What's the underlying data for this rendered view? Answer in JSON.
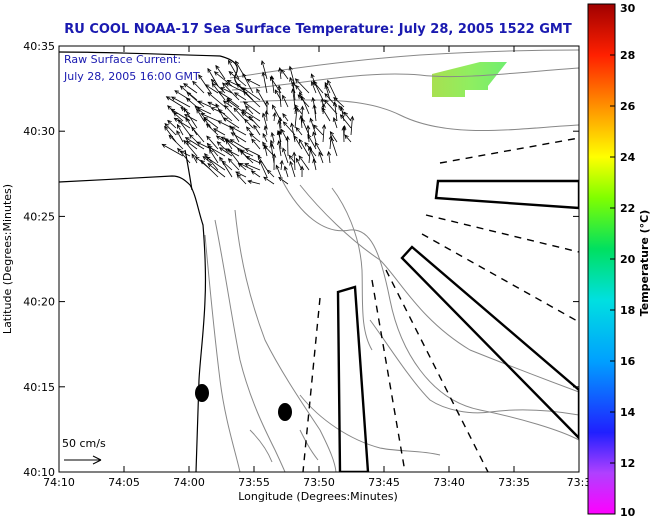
{
  "chart_data": {
    "type": "map",
    "title": "RU COOL  NOAA-17  Sea Surface Temperature:  July 28, 2005 1522 GMT",
    "xlabel": "Longitude (Degrees:Minutes)",
    "ylabel": "Latitude (Degrees:Minutes)",
    "x_ticks": [
      "74:10",
      "74:05",
      "74:00",
      "73:55",
      "73:50",
      "73:45",
      "73:40",
      "73:35",
      "73:3"
    ],
    "y_ticks": [
      "40:35",
      "40:30",
      "40:25",
      "40:20",
      "40:15",
      "40:10"
    ],
    "annotation_line1": "Raw Surface Current:",
    "annotation_line2": "July 28, 2005 16:00 GMT",
    "scale_label": "50 cm/s",
    "colorbar": {
      "label": "Temperature (°C)",
      "ticks": [
        "30",
        "28",
        "26",
        "24",
        "22",
        "20",
        "18",
        "16",
        "14",
        "12",
        "10"
      ],
      "range": [
        10,
        30
      ]
    }
  }
}
